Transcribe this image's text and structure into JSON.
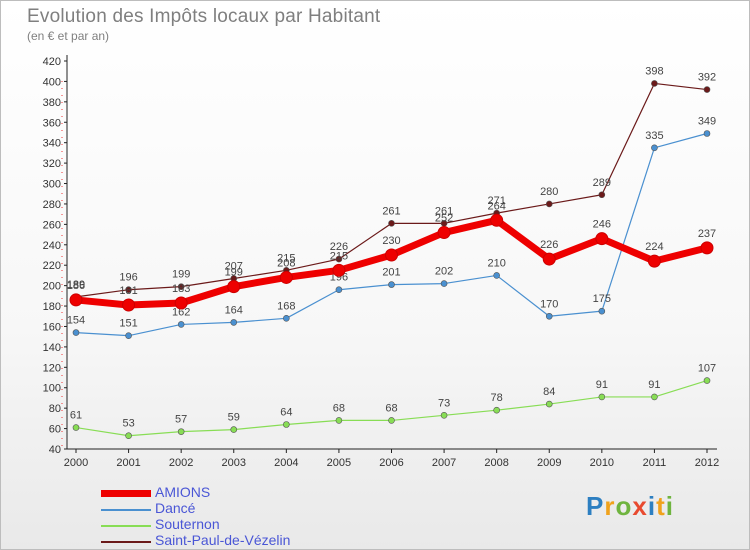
{
  "header": {
    "title": "Evolution des Impôts locaux par Habitant",
    "subtitle": "(en € et par an)"
  },
  "logo": {
    "text": "Proxiti",
    "colors": [
      "#2d7fc1",
      "#f0a21c",
      "#6fb43f",
      "#e84a2f",
      "#2d7fc1",
      "#f0a21c",
      "#6fb43f"
    ]
  },
  "chart_data": {
    "type": "line",
    "x": [
      "2000",
      "2001",
      "2002",
      "2003",
      "2004",
      "2005",
      "2006",
      "2007",
      "2008",
      "2009",
      "2010",
      "2011",
      "2012"
    ],
    "ylim": [
      40,
      420
    ],
    "yticks": [
      40,
      60,
      80,
      100,
      120,
      140,
      160,
      180,
      200,
      220,
      240,
      260,
      280,
      300,
      320,
      340,
      360,
      380,
      400,
      420
    ],
    "grid": false,
    "legend_position": "bottom-left",
    "series": [
      {
        "name": "Saint-Paul-de-Vézelin",
        "color": "#6b1a1a",
        "marker": "#6b1a1a",
        "values": [
          189,
          196,
          199,
          207,
          215,
          226,
          261,
          261,
          271,
          280,
          289,
          398,
          392
        ]
      },
      {
        "name": "Dancé",
        "color": "#4a90d0",
        "marker": "#4a90d0",
        "values": [
          154,
          151,
          162,
          164,
          168,
          196,
          201,
          202,
          210,
          170,
          175,
          335,
          349
        ]
      },
      {
        "name": "Souternon",
        "color": "#88dd55",
        "marker": "#88dd55",
        "values": [
          61,
          53,
          57,
          59,
          64,
          68,
          68,
          73,
          78,
          84,
          91,
          91,
          107
        ]
      },
      {
        "name": "AMIONS",
        "color": "#ee0000",
        "marker": "#ee0000",
        "values": [
          186,
          181,
          183,
          199,
          208,
          215,
          230,
          252,
          264,
          226,
          246,
          224,
          237
        ]
      }
    ],
    "legend": [
      "AMIONS",
      "Dancé",
      "Souternon",
      "Saint-Paul-de-Vézelin"
    ]
  }
}
